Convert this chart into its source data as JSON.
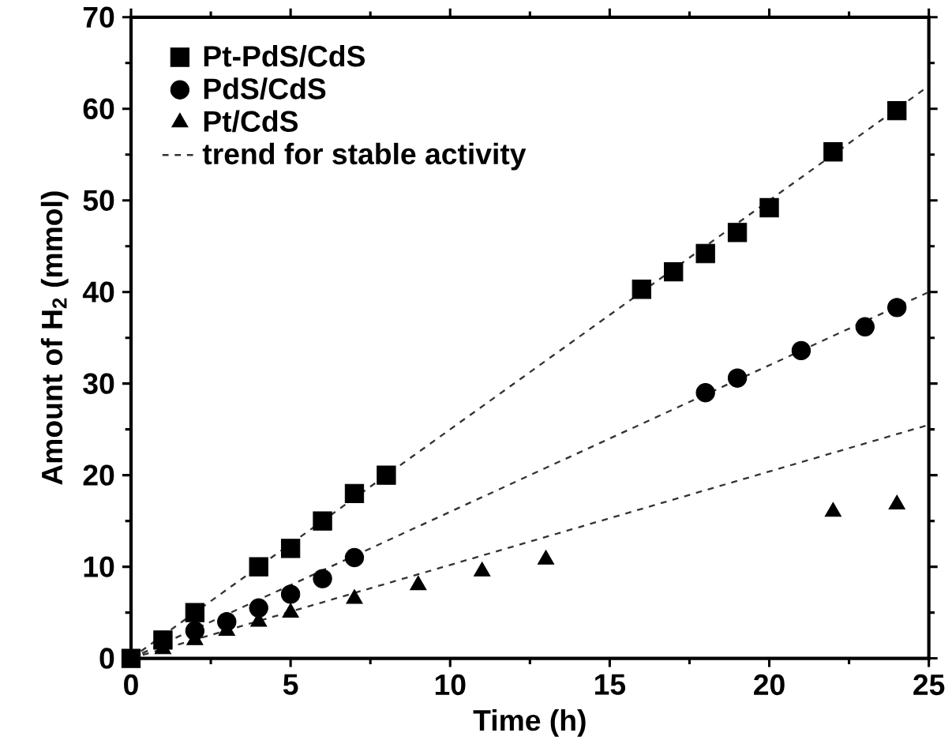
{
  "chart_data": {
    "type": "scatter",
    "xlabel": "Time (h)",
    "ylabel": "Amount of H$_{2}$ (mmol)",
    "xlim": [
      0,
      25
    ],
    "ylim": [
      0,
      70
    ],
    "xticks": [
      0,
      5,
      10,
      15,
      20,
      25
    ],
    "yticks": [
      0,
      10,
      20,
      30,
      40,
      50,
      60,
      70
    ],
    "grid": false,
    "legend": "top left",
    "series": [
      {
        "name": "Pt-PdS/CdS",
        "color": "#000000",
        "marker": "square",
        "x": [
          0,
          1,
          2,
          4,
          5,
          6,
          7,
          8,
          16,
          17,
          18,
          19,
          20,
          22,
          24
        ],
        "values": [
          0,
          2,
          5,
          10,
          12,
          15,
          18,
          20,
          40.3,
          42.2,
          44.2,
          46.5,
          49.2,
          55.3,
          59.8
        ]
      },
      {
        "name": "PdS/CdS",
        "color": "#000000",
        "marker": "circle",
        "x": [
          2,
          3,
          4,
          5,
          6,
          7,
          18,
          19,
          21,
          23,
          24
        ],
        "values": [
          3,
          4,
          5.5,
          7,
          8.7,
          11,
          29,
          30.6,
          33.6,
          36.2,
          38.3
        ]
      },
      {
        "name": "Pt/CdS",
        "color": "#000000",
        "marker": "triangle",
        "x": [
          1,
          2,
          3,
          4,
          5,
          7,
          9,
          11,
          13,
          22,
          24
        ],
        "values": [
          1,
          2,
          3,
          4,
          5,
          6.5,
          8,
          9.5,
          10.8,
          16,
          16.8
        ]
      },
      {
        "name": "trend for stable activity",
        "type": "line",
        "color": "#333333",
        "marker": "none",
        "line_style": "dashed",
        "x": [
          0,
          25
        ],
        "values": [
          0,
          62.5
        ]
      },
      {
        "type": "line",
        "color": "#333333",
        "marker": "none",
        "line_style": "dashed",
        "x": [
          0,
          25
        ],
        "values": [
          0,
          40
        ]
      },
      {
        "type": "line",
        "color": "#333333",
        "marker": "none",
        "line_style": "dashed",
        "x": [
          0,
          25
        ],
        "values": [
          0,
          25.5
        ]
      }
    ]
  }
}
